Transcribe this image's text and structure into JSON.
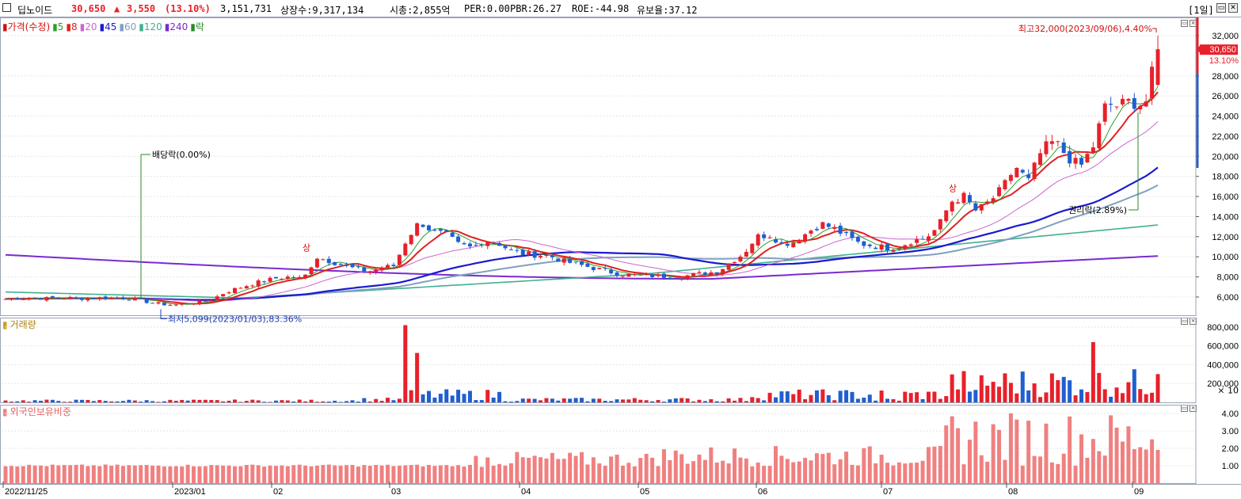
{
  "header": {
    "name": "딥노이드",
    "price": "30,650",
    "change_arrow": "▲",
    "change": "3,550",
    "change_pct": "(13.10%)",
    "volume": "3,151,731",
    "listed_shares": "상장수:9,317,134",
    "market_cap": "시총:2,855억",
    "per": "PER:0.00",
    "pbr": "PBR:26.27",
    "roe": "ROE:-44.98",
    "retention": "유보율:37.12",
    "period": "[1일]"
  },
  "colors": {
    "up": "#e8202a",
    "down": "#1f5fd0",
    "ma5": "#2ca02c",
    "ma8": "#e02020",
    "ma20": "#cc66cc",
    "ma45": "#1a1ad0",
    "ma60": "#7fa0c0",
    "ma120": "#40b090",
    "ma240": "#7a2ad0",
    "foreign": "#f08080",
    "grid": "#e6e6e6",
    "axis_text": "#000000"
  },
  "price_panel": {
    "legend": [
      {
        "label": "가격(수정)",
        "color": "#d01010"
      },
      {
        "label": "5",
        "color": "#2ca02c"
      },
      {
        "label": "8",
        "color": "#e02020"
      },
      {
        "label": "20",
        "color": "#cc66cc"
      },
      {
        "label": "45",
        "color": "#1a1ad0"
      },
      {
        "label": "60",
        "color": "#7fa0c0"
      },
      {
        "label": "120",
        "color": "#40b090"
      },
      {
        "label": "240",
        "color": "#7a2ad0"
      },
      {
        "label": "락",
        "color": "#2a8a2a"
      }
    ],
    "y_ticks": [
      "32,000",
      "30,650",
      "28,000",
      "26,000",
      "24,000",
      "22,000",
      "20,000",
      "18,000",
      "16,000",
      "14,000",
      "12,000",
      "10,000",
      "8,000",
      "6,000"
    ],
    "tick_values": [
      32000,
      28000,
      26000,
      24000,
      22000,
      20000,
      18000,
      16000,
      14000,
      12000,
      10000,
      8000,
      6000
    ],
    "current_label": "30,650",
    "current_pct": "13.10%",
    "ylim": [
      4500,
      33500
    ],
    "annotations": {
      "high": "최고32,000(2023/09/06),4.40%",
      "low": "최저5,099(2023/01/03),83.36%",
      "dividend": "배당락(0.00%)",
      "rights": "권리락(2.89%)",
      "upper_limit_1": "상",
      "upper_limit_2": "상"
    }
  },
  "volume_panel": {
    "legend": "거래량",
    "y_ticks": [
      "800,000",
      "600,000",
      "400,000",
      "200,000"
    ],
    "tick_values": [
      800000,
      600000,
      400000,
      200000
    ],
    "unit": "× 10",
    "ylim": [
      0,
      900000
    ]
  },
  "foreign_panel": {
    "legend": "외국인보유비중",
    "y_ticks": [
      "4.00",
      "3.00",
      "2.00",
      "1.00"
    ],
    "tick_values": [
      4,
      3,
      2,
      1
    ],
    "ylim": [
      0,
      4.5
    ]
  },
  "x_axis": {
    "labels": [
      "2022/11/25",
      "2023/01",
      "02",
      "03",
      "04",
      "05",
      "06",
      "07",
      "08",
      "09"
    ]
  },
  "chart_data": {
    "type": "candlestick",
    "period": "daily",
    "date_range": [
      "2022/11/25",
      "2023/09/06"
    ],
    "price": {
      "anchors": [
        [
          5800
        ],
        [
          5900
        ],
        [
          5950
        ],
        [
          5850
        ],
        [
          5900
        ],
        [
          5900
        ],
        [
          5850
        ],
        [
          5900
        ],
        [
          5950
        ],
        [
          5900
        ],
        [
          5800
        ],
        [
          5500
        ],
        [
          5300
        ],
        [
          5200
        ],
        [
          5400
        ],
        [
          5500
        ],
        [
          5800
        ],
        [
          6500
        ],
        [
          6900
        ],
        [
          7300
        ],
        [
          7600
        ],
        [
          7900
        ],
        [
          8000
        ],
        [
          7800
        ],
        [
          10000
        ],
        [
          9600
        ],
        [
          9200
        ],
        [
          8800
        ],
        [
          8500
        ],
        [
          8900
        ],
        [
          9100
        ],
        [
          11800
        ],
        [
          13500
        ],
        [
          12500
        ],
        [
          12200
        ],
        [
          11200
        ],
        [
          10900
        ],
        [
          11600
        ],
        [
          11400
        ],
        [
          10600
        ],
        [
          10300
        ],
        [
          10200
        ],
        [
          10100
        ],
        [
          9600
        ],
        [
          9300
        ],
        [
          9000
        ],
        [
          8700
        ],
        [
          8400
        ],
        [
          8200
        ],
        [
          8150
        ],
        [
          8100
        ],
        [
          8050
        ],
        [
          8000
        ],
        [
          8200
        ],
        [
          8400
        ],
        [
          8500
        ],
        [
          9500
        ],
        [
          10300
        ],
        [
          12000
        ],
        [
          12200
        ],
        [
          11300
        ],
        [
          11500
        ],
        [
          12500
        ],
        [
          13300
        ],
        [
          12800
        ],
        [
          12000
        ],
        [
          11300
        ],
        [
          11100
        ],
        [
          10900
        ],
        [
          11000
        ],
        [
          11600
        ],
        [
          11800
        ],
        [
          12900
        ],
        [
          15500
        ],
        [
          16000
        ],
        [
          14500
        ],
        [
          15500
        ],
        [
          16800
        ],
        [
          19000
        ],
        [
          17500
        ],
        [
          20500
        ],
        [
          21500
        ],
        [
          20000
        ],
        [
          18900
        ],
        [
          21000
        ],
        [
          25200
        ],
        [
          25000
        ],
        [
          25500
        ],
        [
          25000
        ],
        [
          30650
        ]
      ],
      "last": {
        "close": 30650,
        "change": 3550,
        "change_pct": 13.1
      },
      "high": 32000,
      "low": 5099
    },
    "moving_averages": {
      "ma120_end": 13200,
      "ma240_end": 10000,
      "ma45_end": 18600,
      "ma60_end": 17200
    },
    "volume_peaks": [
      {
        "index": 31,
        "value": 820000
      },
      {
        "index": 32,
        "value": 525000
      },
      {
        "index": 84,
        "value": 640000
      }
    ],
    "foreign_ratio_range": [
      0.9,
      4.1
    ]
  }
}
